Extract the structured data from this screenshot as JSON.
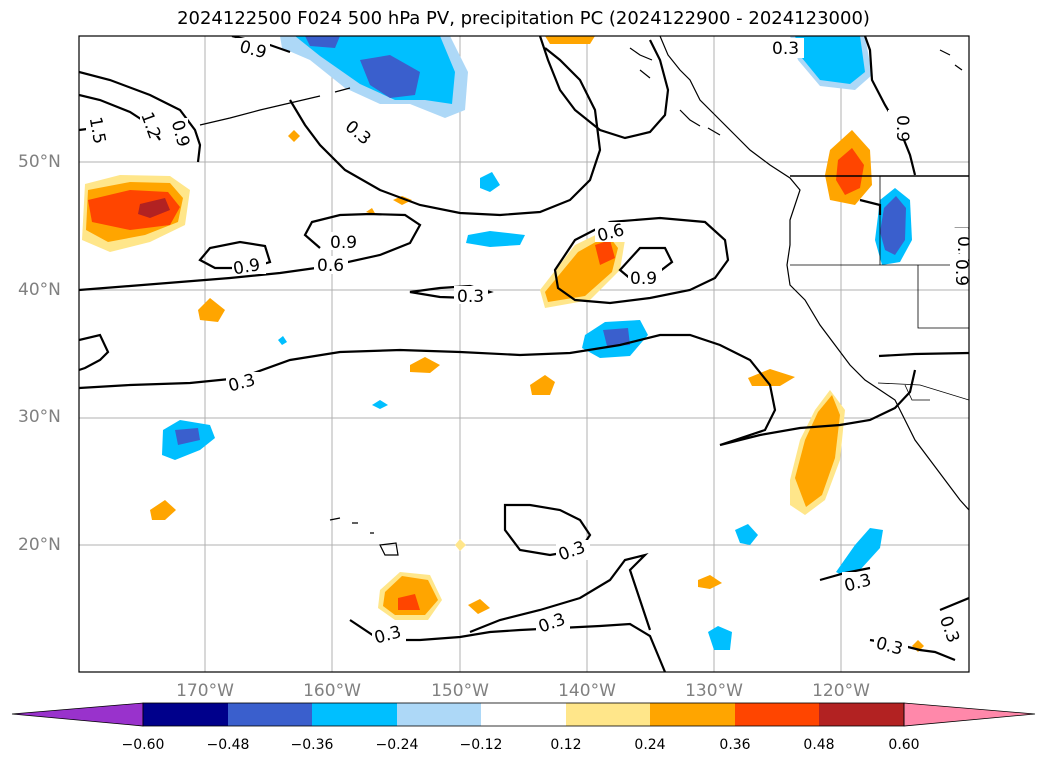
{
  "title": "2024122500 F024 500 hPa PV, precipitation PC (2024122900 - 2024123000)",
  "lat_labels": [
    "50°N",
    "40°N",
    "30°N",
    "20°N"
  ],
  "lon_labels": [
    "170°W",
    "160°W",
    "150°W",
    "140°W",
    "130°W",
    "120°W"
  ],
  "colorbar": {
    "ticks": [
      "−0.60",
      "−0.48",
      "−0.36",
      "−0.24",
      "−0.12",
      "0.12",
      "0.24",
      "0.36",
      "0.48",
      "0.60"
    ],
    "colors": [
      "#9932cc",
      "#00008b",
      "#3a5fcd",
      "#00bfff",
      "#add8f7",
      "#ffffff",
      "#ffe68a",
      "#ffa500",
      "#ff4500",
      "#b22222",
      "#ff88aa"
    ]
  },
  "contour_labels": [
    "0.9",
    "0.3",
    "1.5",
    "1.2",
    "0.9",
    "0.3",
    "0.9",
    "0.6",
    "0.9",
    "0.3",
    "0.6",
    "0.9",
    "0.3",
    "0.9",
    "0.3",
    "0.3",
    "0.3",
    "0.3",
    "0.3",
    "0.3",
    "0.3",
    "0.9"
  ]
}
